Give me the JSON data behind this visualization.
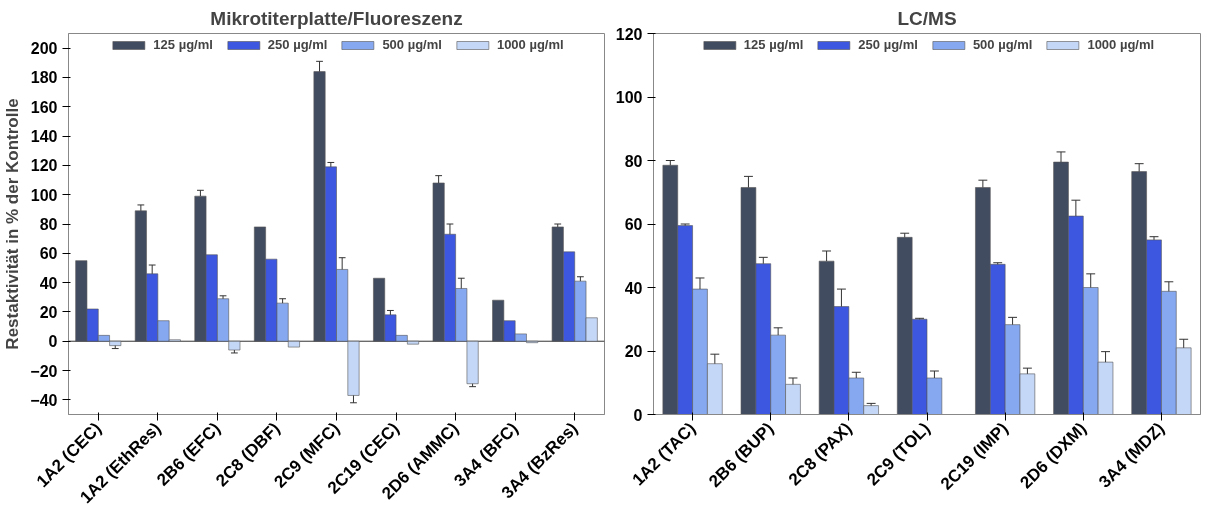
{
  "chart_data": [
    {
      "type": "bar",
      "title": "Mikrotiterplatte/Fluoreszenz",
      "ylabel": "Restaktivität in % der Kontrolle",
      "categories": [
        "1A2 (CEC)",
        "1A2 (EthRes)",
        "2B6 (EFC)",
        "2C8 (DBF)",
        "2C9 (MFC)",
        "2C19 (CEC)",
        "2D6 (AMMC)",
        "3A4 (BFC)",
        "3A4 (BzRes)"
      ],
      "series": [
        {
          "name": "125 µg/ml",
          "color": "#424c61",
          "values": [
            55,
            89,
            99,
            78,
            184,
            43,
            108,
            28,
            78
          ],
          "errors": [
            null,
            [
              89,
              93
            ],
            [
              99,
              103
            ],
            null,
            [
              184,
              191
            ],
            null,
            [
              108,
              113
            ],
            null,
            [
              78,
              80
            ]
          ]
        },
        {
          "name": "250 µg/ml",
          "color": "#3d57e0",
          "values": [
            22,
            46,
            59,
            56,
            119,
            18,
            73,
            14,
            61
          ],
          "errors": [
            null,
            [
              46,
              52
            ],
            null,
            null,
            [
              119,
              122
            ],
            [
              18,
              21
            ],
            [
              73,
              80
            ],
            null,
            null
          ]
        },
        {
          "name": "500 µg/ml",
          "color": "#86a8f0",
          "values": [
            4,
            14,
            29,
            26,
            49,
            4,
            36,
            5,
            41
          ],
          "errors": [
            null,
            null,
            [
              29,
              31
            ],
            [
              26,
              29
            ],
            [
              49,
              57
            ],
            null,
            [
              36,
              43
            ],
            null,
            [
              41,
              44
            ]
          ]
        },
        {
          "name": "1000 µg/ml",
          "color": "#c5d7f7",
          "values": [
            -3,
            1,
            -6,
            -4,
            -37,
            -2,
            -29,
            -1,
            16
          ],
          "errors": [
            [
              -5,
              -3
            ],
            null,
            [
              -8,
              -6
            ],
            null,
            [
              -42,
              -37
            ],
            null,
            [
              -31,
              -29
            ],
            null,
            null
          ]
        }
      ],
      "ylim": [
        -50,
        210
      ],
      "yticks": [
        -40,
        -20,
        0,
        20,
        40,
        60,
        80,
        100,
        120,
        140,
        160,
        180,
        200
      ],
      "legend": "top"
    },
    {
      "type": "bar",
      "title": "LC/MS",
      "categories": [
        "1A2 (TAC)",
        "2B6 (BUP)",
        "2C8 (PAX)",
        "2C9 (TOL)",
        "2C19 (IMP)",
        "2D6 (DXM)",
        "3A4 (MDZ)"
      ],
      "series": [
        {
          "name": "125 µg/ml",
          "color": "#424c61",
          "values": [
            78.5,
            71.5,
            48.3,
            55.8,
            71.5,
            79.5,
            76.5
          ],
          "errors": [
            [
              78.5,
              80
            ],
            [
              71.5,
              75
            ],
            [
              48.3,
              51.5
            ],
            [
              55.8,
              57.1
            ],
            [
              71.5,
              73.8
            ],
            [
              79.5,
              82.7
            ],
            [
              76.5,
              79
            ]
          ]
        },
        {
          "name": "250 µg/ml",
          "color": "#3d57e0",
          "values": [
            59.5,
            47.5,
            34,
            30,
            47.3,
            62.5,
            55
          ],
          "errors": [
            [
              59.5,
              60
            ],
            [
              47.5,
              49.5
            ],
            [
              34,
              39.5
            ],
            [
              30,
              30.3
            ],
            [
              47.3,
              47.8
            ],
            [
              62.5,
              67.5
            ],
            [
              55,
              56
            ]
          ]
        },
        {
          "name": "500 µg/ml",
          "color": "#86a8f0",
          "values": [
            39.5,
            25,
            11.5,
            11.5,
            28.3,
            40,
            38.8
          ],
          "errors": [
            [
              39.5,
              43
            ],
            [
              25,
              27.3
            ],
            [
              11.5,
              13.3
            ],
            [
              11.5,
              13.7
            ],
            [
              28.3,
              30.6
            ],
            [
              40,
              44.3
            ],
            [
              38.8,
              41.8
            ]
          ]
        },
        {
          "name": "1000 µg/ml",
          "color": "#c5d7f7",
          "values": [
            16,
            9.5,
            2.8,
            null,
            12.8,
            16.5,
            21
          ],
          "errors": [
            [
              16,
              19
            ],
            [
              9.5,
              11.5
            ],
            [
              2.8,
              3.5
            ],
            null,
            [
              12.8,
              14.6
            ],
            [
              16.5,
              19.8
            ],
            [
              21,
              23.7
            ]
          ]
        }
      ],
      "ylim": [
        0,
        120
      ],
      "yticks": [
        0,
        20,
        40,
        60,
        80,
        100,
        120
      ],
      "legend": "top"
    }
  ]
}
